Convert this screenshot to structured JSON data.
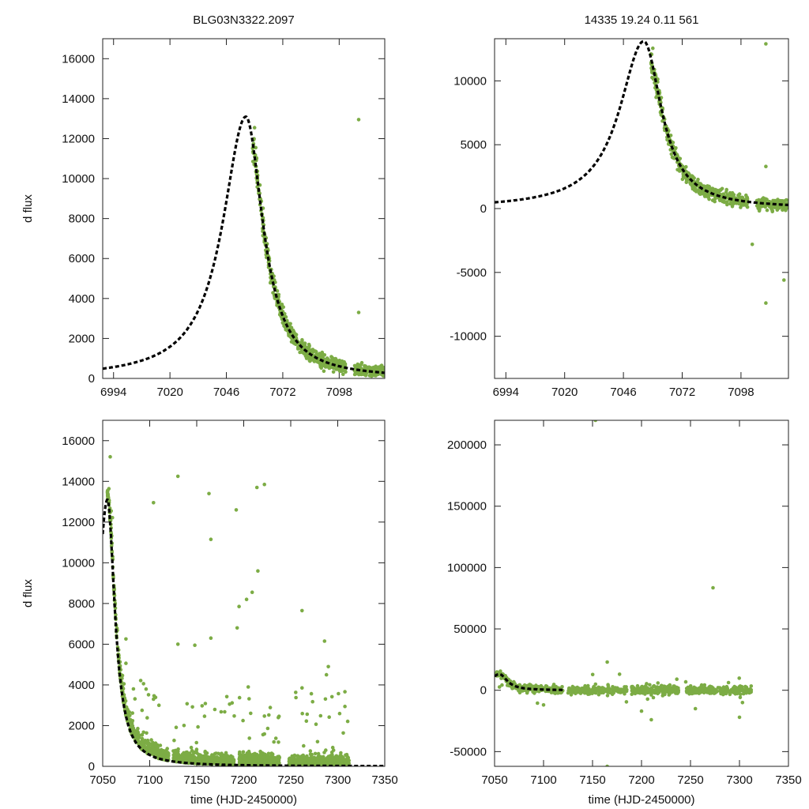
{
  "chart_data": [
    {
      "type": "scatter",
      "title": "BLG03N3322.2097",
      "xlabel": "",
      "ylabel": "d flux",
      "xlim": [
        6989,
        7119
      ],
      "ylim": [
        0,
        17000
      ],
      "xticks": [
        6994,
        7020,
        7046,
        7072,
        7098
      ],
      "yticks": [
        0,
        2000,
        4000,
        6000,
        8000,
        10000,
        12000,
        14000,
        16000
      ],
      "model": {
        "t0": 7055,
        "amplitude": 13100,
        "width_before": 13,
        "width_after": 9.5
      },
      "outliers": [
        {
          "x": 7107,
          "y": 12950
        },
        {
          "x": 7107,
          "y": 3300
        },
        {
          "x": 7059,
          "y": 12550
        }
      ]
    },
    {
      "type": "scatter",
      "title": "14335   19.24   0.11   561",
      "xlabel": "",
      "ylabel": "",
      "xlim": [
        6989,
        7119
      ],
      "ylim": [
        -13300,
        13300
      ],
      "xticks": [
        6994,
        7020,
        7046,
        7072,
        7098
      ],
      "yticks": [
        -10000,
        -5000,
        0,
        5000,
        10000
      ],
      "model": {
        "t0": 7055,
        "amplitude": 13100,
        "width_before": 13,
        "width_after": 9.5
      },
      "outliers": [
        {
          "x": 7109,
          "y": 12900
        },
        {
          "x": 7109,
          "y": -7400
        },
        {
          "x": 7109,
          "y": 3300
        },
        {
          "x": 7103,
          "y": -2800
        },
        {
          "x": 7117,
          "y": -5600
        },
        {
          "x": 7059,
          "y": 12550
        }
      ]
    },
    {
      "type": "scatter",
      "title": "",
      "xlabel": "time (HJD-2450000)",
      "ylabel": "d flux",
      "xlim": [
        7050,
        7350
      ],
      "ylim": [
        0,
        17000
      ],
      "xticks": [
        7050,
        7100,
        7150,
        7200,
        7250,
        7300,
        7350
      ],
      "yticks": [
        0,
        2000,
        4000,
        6000,
        8000,
        10000,
        12000,
        14000,
        16000
      ],
      "model": {
        "t0": 7055,
        "amplitude": 13100,
        "width_before": 13,
        "width_after": 9.5
      },
      "outliers": [
        {
          "x": 7130,
          "y": 14250
        },
        {
          "x": 7163,
          "y": 13400
        },
        {
          "x": 7165,
          "y": 11150
        },
        {
          "x": 7192,
          "y": 12600
        },
        {
          "x": 7214,
          "y": 13700
        },
        {
          "x": 7222,
          "y": 13850
        },
        {
          "x": 7104,
          "y": 12950
        },
        {
          "x": 7059,
          "y": 12550
        },
        {
          "x": 7195,
          "y": 7850
        },
        {
          "x": 7209,
          "y": 8550
        },
        {
          "x": 7215,
          "y": 9600
        },
        {
          "x": 7262,
          "y": 7650
        },
        {
          "x": 7286,
          "y": 6150
        },
        {
          "x": 7290,
          "y": 4900
        },
        {
          "x": 7288,
          "y": 4500
        },
        {
          "x": 7193,
          "y": 6800
        },
        {
          "x": 7203,
          "y": 8200
        },
        {
          "x": 7165,
          "y": 6300
        },
        {
          "x": 7148,
          "y": 5950
        },
        {
          "x": 7130,
          "y": 6000
        },
        {
          "x": 7104,
          "y": 3300
        }
      ]
    },
    {
      "type": "scatter",
      "title": "",
      "xlabel": "time (HJD-2450000)",
      "ylabel": "",
      "xlim": [
        7050,
        7350
      ],
      "ylim": [
        -62000,
        220000
      ],
      "xticks": [
        7050,
        7100,
        7150,
        7200,
        7250,
        7300,
        7350
      ],
      "yticks": [
        -50000,
        0,
        50000,
        100000,
        150000,
        200000
      ],
      "model": {
        "t0": 7055,
        "amplitude": 13100,
        "width_before": 13,
        "width_after": 9.5,
        "end": 7120
      },
      "outliers": [
        {
          "x": 7153,
          "y": 220000
        },
        {
          "x": 7273,
          "y": 83500
        },
        {
          "x": 7165,
          "y": -62000
        },
        {
          "x": 7165,
          "y": 23000
        },
        {
          "x": 7200,
          "y": -17000
        },
        {
          "x": 7210,
          "y": -24000
        },
        {
          "x": 7255,
          "y": -15000
        },
        {
          "x": 7300,
          "y": -22000
        },
        {
          "x": 7100,
          "y": -12000
        }
      ]
    }
  ]
}
